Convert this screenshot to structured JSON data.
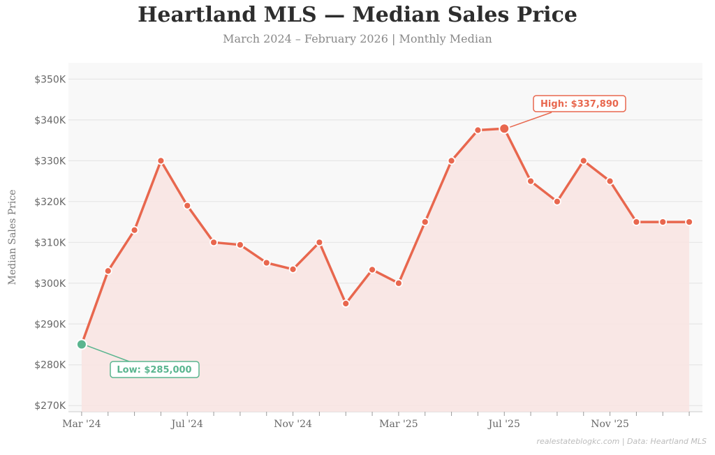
{
  "chart_data": {
    "type": "line",
    "title": "Heartland MLS — Median Sales Price",
    "subtitle": "March 2024 – February 2026  |  Monthly Median",
    "xlabel": "",
    "ylabel": "Median Sales Price",
    "x": [
      "Mar '24",
      "Apr '24",
      "May '24",
      "Jun '24",
      "Jul '24",
      "Aug '24",
      "Sep '24",
      "Oct '24",
      "Nov '24",
      "Dec '24",
      "Jan '25",
      "Feb '25",
      "Mar '25",
      "Apr '25",
      "May '25",
      "Jun '25",
      "Jul '25",
      "Aug '25",
      "Sep '25",
      "Oct '25",
      "Nov '25",
      "Dec '25",
      "Jan '26",
      "Feb '26"
    ],
    "values": [
      285000,
      303000,
      313000,
      330000,
      319000,
      310000,
      309400,
      305000,
      303400,
      310000,
      295000,
      303300,
      300000,
      315000,
      330000,
      337500,
      337890,
      325000,
      320000,
      330000,
      325000,
      315000,
      315000,
      315000
    ],
    "xtick_labels": [
      "Mar '24",
      "Jul '24",
      "Nov '24",
      "Mar '25",
      "Jul '25",
      "Nov '25"
    ],
    "ytick_labels": [
      "$270K",
      "$280K",
      "$290K",
      "$300K",
      "$310K",
      "$320K",
      "$330K",
      "$340K",
      "$350K"
    ],
    "yticks": [
      270000,
      280000,
      290000,
      300000,
      310000,
      320000,
      330000,
      340000,
      350000
    ],
    "ylim": [
      268500,
      354000
    ],
    "grid": true,
    "annotations": [
      {
        "label": "High: $337,890",
        "index": 16,
        "color": "#e8674e"
      },
      {
        "label": "Low: $285,000",
        "index": 0,
        "color": "#5ab58f"
      }
    ],
    "line_color": "#e8674e",
    "fill_color": "#f8e4e2",
    "footer": "realestateblogkc.com  |  Data: Heartland MLS"
  }
}
